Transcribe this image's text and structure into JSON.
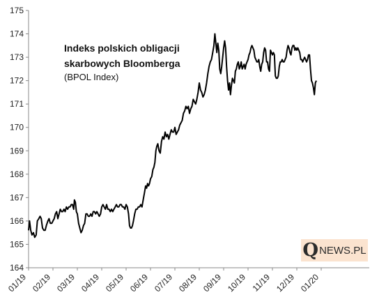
{
  "title_line1": "Indeks polskich obligacji",
  "title_line2": "skarbowych Bloomberga",
  "subtitle": "(BPOL Index)",
  "logo": {
    "mark": "Q",
    "text": "NEWS.PL"
  },
  "chart_data": {
    "type": "line",
    "title": "Indeks polskich obligacji skarbowych Bloomberga",
    "subtitle": "(BPOL Index)",
    "xlabel": "",
    "ylabel": "",
    "ylim": [
      164,
      175
    ],
    "yticks": [
      164,
      165,
      166,
      167,
      168,
      169,
      170,
      171,
      172,
      173,
      174,
      175
    ],
    "xlim": [
      0,
      13.8
    ],
    "xticks": [
      {
        "x": 0,
        "label": "01/19"
      },
      {
        "x": 1,
        "label": "02/19"
      },
      {
        "x": 2,
        "label": "03/19"
      },
      {
        "x": 3,
        "label": "04/19"
      },
      {
        "x": 4,
        "label": "05/19"
      },
      {
        "x": 5,
        "label": "06/19"
      },
      {
        "x": 6,
        "label": "07/19"
      },
      {
        "x": 7,
        "label": "08/19"
      },
      {
        "x": 8,
        "label": "09/19"
      },
      {
        "x": 9,
        "label": "10/19"
      },
      {
        "x": 10,
        "label": "11/19"
      },
      {
        "x": 11,
        "label": "12/19"
      },
      {
        "x": 12,
        "label": "01/20"
      }
    ],
    "grid": false,
    "line_color": "#000000",
    "series": [
      {
        "points": [
          [
            0.0,
            165.6
          ],
          [
            0.04,
            166.0
          ],
          [
            0.09,
            165.6
          ],
          [
            0.14,
            165.4
          ],
          [
            0.2,
            165.5
          ],
          [
            0.25,
            165.3
          ],
          [
            0.31,
            165.4
          ],
          [
            0.36,
            166.0
          ],
          [
            0.42,
            166.1
          ],
          [
            0.47,
            166.2
          ],
          [
            0.52,
            166.1
          ],
          [
            0.57,
            165.7
          ],
          [
            0.63,
            165.6
          ],
          [
            0.68,
            165.6
          ],
          [
            0.73,
            165.8
          ],
          [
            0.79,
            166.0
          ],
          [
            0.84,
            166.1
          ],
          [
            0.89,
            165.9
          ],
          [
            0.95,
            165.9
          ],
          [
            1.0,
            166.0
          ],
          [
            1.05,
            166.1
          ],
          [
            1.1,
            166.3
          ],
          [
            1.15,
            166.4
          ],
          [
            1.2,
            166.1
          ],
          [
            1.25,
            166.3
          ],
          [
            1.3,
            166.5
          ],
          [
            1.35,
            166.4
          ],
          [
            1.4,
            166.4
          ],
          [
            1.45,
            166.5
          ],
          [
            1.5,
            166.4
          ],
          [
            1.55,
            166.6
          ],
          [
            1.6,
            166.5
          ],
          [
            1.65,
            166.6
          ],
          [
            1.7,
            166.6
          ],
          [
            1.75,
            166.7
          ],
          [
            1.8,
            166.7
          ],
          [
            1.85,
            166.5
          ],
          [
            1.88,
            166.9
          ],
          [
            1.92,
            166.8
          ],
          [
            1.96,
            166.4
          ],
          [
            2.0,
            166.3
          ],
          [
            2.05,
            165.9
          ],
          [
            2.1,
            165.7
          ],
          [
            2.15,
            165.5
          ],
          [
            2.2,
            165.6
          ],
          [
            2.25,
            165.8
          ],
          [
            2.3,
            165.9
          ],
          [
            2.35,
            166.3
          ],
          [
            2.4,
            166.3
          ],
          [
            2.45,
            166.2
          ],
          [
            2.5,
            166.2
          ],
          [
            2.55,
            166.3
          ],
          [
            2.6,
            166.2
          ],
          [
            2.65,
            166.4
          ],
          [
            2.7,
            166.4
          ],
          [
            2.75,
            166.3
          ],
          [
            2.8,
            166.4
          ],
          [
            2.85,
            166.3
          ],
          [
            2.9,
            166.2
          ],
          [
            2.95,
            166.3
          ],
          [
            3.0,
            166.6
          ],
          [
            3.05,
            166.7
          ],
          [
            3.1,
            166.6
          ],
          [
            3.15,
            166.5
          ],
          [
            3.2,
            166.7
          ],
          [
            3.25,
            166.5
          ],
          [
            3.3,
            166.5
          ],
          [
            3.35,
            166.4
          ],
          [
            3.4,
            166.5
          ],
          [
            3.45,
            166.4
          ],
          [
            3.5,
            166.5
          ],
          [
            3.55,
            166.6
          ],
          [
            3.6,
            166.7
          ],
          [
            3.65,
            166.6
          ],
          [
            3.7,
            166.6
          ],
          [
            3.75,
            166.7
          ],
          [
            3.8,
            166.7
          ],
          [
            3.85,
            166.6
          ],
          [
            3.9,
            166.6
          ],
          [
            3.95,
            166.5
          ],
          [
            4.0,
            166.7
          ],
          [
            4.05,
            166.6
          ],
          [
            4.1,
            166.3
          ],
          [
            4.14,
            165.8
          ],
          [
            4.18,
            165.7
          ],
          [
            4.22,
            165.7
          ],
          [
            4.26,
            165.8
          ],
          [
            4.3,
            166.0
          ],
          [
            4.35,
            166.3
          ],
          [
            4.4,
            166.5
          ],
          [
            4.45,
            166.5
          ],
          [
            4.5,
            166.6
          ],
          [
            4.55,
            166.6
          ],
          [
            4.6,
            166.7
          ],
          [
            4.65,
            166.6
          ],
          [
            4.7,
            166.9
          ],
          [
            4.75,
            167.2
          ],
          [
            4.8,
            167.5
          ],
          [
            4.84,
            167.4
          ],
          [
            4.88,
            167.6
          ],
          [
            4.92,
            167.5
          ],
          [
            4.96,
            167.6
          ],
          [
            5.0,
            167.8
          ],
          [
            5.05,
            167.9
          ],
          [
            5.1,
            168.2
          ],
          [
            5.14,
            168.3
          ],
          [
            5.18,
            168.5
          ],
          [
            5.22,
            169.0
          ],
          [
            5.26,
            169.2
          ],
          [
            5.3,
            169.3
          ],
          [
            5.35,
            169.0
          ],
          [
            5.4,
            168.9
          ],
          [
            5.45,
            169.4
          ],
          [
            5.5,
            169.6
          ],
          [
            5.55,
            169.5
          ],
          [
            5.6,
            169.8
          ],
          [
            5.65,
            169.6
          ],
          [
            5.7,
            169.7
          ],
          [
            5.75,
            169.5
          ],
          [
            5.8,
            169.7
          ],
          [
            5.85,
            169.9
          ],
          [
            5.9,
            169.8
          ],
          [
            5.95,
            169.8
          ],
          [
            6.0,
            170.0
          ],
          [
            6.05,
            169.7
          ],
          [
            6.1,
            169.8
          ],
          [
            6.15,
            169.9
          ],
          [
            6.2,
            170.1
          ],
          [
            6.25,
            170.2
          ],
          [
            6.3,
            170.3
          ],
          [
            6.35,
            170.6
          ],
          [
            6.4,
            170.7
          ],
          [
            6.45,
            170.9
          ],
          [
            6.5,
            170.8
          ],
          [
            6.55,
            170.9
          ],
          [
            6.6,
            170.6
          ],
          [
            6.65,
            170.8
          ],
          [
            6.7,
            170.9
          ],
          [
            6.75,
            171.2
          ],
          [
            6.8,
            171.1
          ],
          [
            6.85,
            171.0
          ],
          [
            6.9,
            171.2
          ],
          [
            6.95,
            171.5
          ],
          [
            7.0,
            171.9
          ],
          [
            7.05,
            171.6
          ],
          [
            7.1,
            171.5
          ],
          [
            7.15,
            171.3
          ],
          [
            7.2,
            171.4
          ],
          [
            7.25,
            171.6
          ],
          [
            7.3,
            171.9
          ],
          [
            7.35,
            172.3
          ],
          [
            7.4,
            172.6
          ],
          [
            7.45,
            172.8
          ],
          [
            7.5,
            172.9
          ],
          [
            7.55,
            173.2
          ],
          [
            7.6,
            173.5
          ],
          [
            7.64,
            174.0
          ],
          [
            7.68,
            173.6
          ],
          [
            7.72,
            173.2
          ],
          [
            7.76,
            173.6
          ],
          [
            7.8,
            173.3
          ],
          [
            7.84,
            172.5
          ],
          [
            7.88,
            172.3
          ],
          [
            7.92,
            172.6
          ],
          [
            7.96,
            173.0
          ],
          [
            8.0,
            173.4
          ],
          [
            8.04,
            173.7
          ],
          [
            8.08,
            173.4
          ],
          [
            8.12,
            172.6
          ],
          [
            8.16,
            172.0
          ],
          [
            8.2,
            171.6
          ],
          [
            8.24,
            171.9
          ],
          [
            8.28,
            171.4
          ],
          [
            8.32,
            171.8
          ],
          [
            8.36,
            172.1
          ],
          [
            8.4,
            172.0
          ],
          [
            8.44,
            171.9
          ],
          [
            8.48,
            172.4
          ],
          [
            8.52,
            172.5
          ],
          [
            8.56,
            172.7
          ],
          [
            8.6,
            172.8
          ],
          [
            8.64,
            172.5
          ],
          [
            8.68,
            172.6
          ],
          [
            8.72,
            172.8
          ],
          [
            8.76,
            172.5
          ],
          [
            8.8,
            172.6
          ],
          [
            8.84,
            172.7
          ],
          [
            8.88,
            172.5
          ],
          [
            8.92,
            172.7
          ],
          [
            8.96,
            172.8
          ],
          [
            9.0,
            172.9
          ],
          [
            9.04,
            173.1
          ],
          [
            9.08,
            173.2
          ],
          [
            9.12,
            173.4
          ],
          [
            9.16,
            173.5
          ],
          [
            9.2,
            173.4
          ],
          [
            9.24,
            173.3
          ],
          [
            9.28,
            173.0
          ],
          [
            9.32,
            172.9
          ],
          [
            9.36,
            172.8
          ],
          [
            9.4,
            172.8
          ],
          [
            9.44,
            172.9
          ],
          [
            9.48,
            172.6
          ],
          [
            9.52,
            172.4
          ],
          [
            9.56,
            172.7
          ],
          [
            9.6,
            172.8
          ],
          [
            9.64,
            173.2
          ],
          [
            9.68,
            173.4
          ],
          [
            9.72,
            173.3
          ],
          [
            9.76,
            172.8
          ],
          [
            9.8,
            172.8
          ],
          [
            9.84,
            172.5
          ],
          [
            9.88,
            172.4
          ],
          [
            9.92,
            173.3
          ],
          [
            9.96,
            173.2
          ],
          [
            10.0,
            173.1
          ],
          [
            10.04,
            173.2
          ],
          [
            10.08,
            173.1
          ],
          [
            10.12,
            172.2
          ],
          [
            10.16,
            172.1
          ],
          [
            10.2,
            172.1
          ],
          [
            10.24,
            172.2
          ],
          [
            10.28,
            172.6
          ],
          [
            10.32,
            172.8
          ],
          [
            10.36,
            172.8
          ],
          [
            10.4,
            172.9
          ],
          [
            10.44,
            172.8
          ],
          [
            10.48,
            172.8
          ],
          [
            10.52,
            172.9
          ],
          [
            10.56,
            173.0
          ],
          [
            10.6,
            173.3
          ],
          [
            10.64,
            173.5
          ],
          [
            10.68,
            173.4
          ],
          [
            10.72,
            173.2
          ],
          [
            10.76,
            173.1
          ],
          [
            10.8,
            173.4
          ],
          [
            10.84,
            173.5
          ],
          [
            10.88,
            173.5
          ],
          [
            10.92,
            173.3
          ],
          [
            10.96,
            173.4
          ],
          [
            11.0,
            173.3
          ],
          [
            11.04,
            173.4
          ],
          [
            11.08,
            173.3
          ],
          [
            11.12,
            173.2
          ],
          [
            11.16,
            172.9
          ],
          [
            11.2,
            172.9
          ],
          [
            11.24,
            172.8
          ],
          [
            11.28,
            172.9
          ],
          [
            11.32,
            173.0
          ],
          [
            11.36,
            172.9
          ],
          [
            11.4,
            172.8
          ],
          [
            11.44,
            172.9
          ],
          [
            11.48,
            173.1
          ],
          [
            11.52,
            173.1
          ],
          [
            11.56,
            172.5
          ],
          [
            11.6,
            172.0
          ],
          [
            11.64,
            171.9
          ],
          [
            11.68,
            171.7
          ],
          [
            11.72,
            171.4
          ],
          [
            11.76,
            171.9
          ],
          [
            11.8,
            172.0
          ]
        ]
      }
    ]
  }
}
